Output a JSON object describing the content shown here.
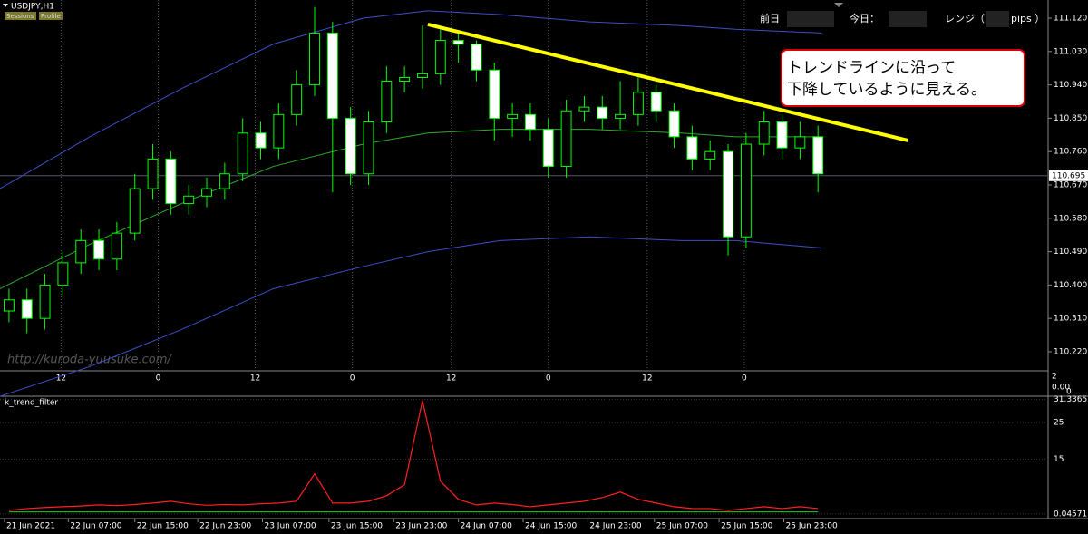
{
  "header": {
    "symbol": "USDJPY,H1",
    "buttons": [
      "Sessions",
      "Profile"
    ],
    "info": [
      "前日",
      "今日：",
      "レンジ（",
      "pips ）"
    ],
    "annotation": [
      "トレンドラインに沿って",
      "下降しているように見える。"
    ],
    "watermark": "http://kuroda-yuusuke.com/",
    "separator_labels": [
      "2",
      "0.00",
      "0"
    ]
  },
  "chart_data": [
    {
      "type": "candlestick",
      "title": "USDJPY,H1",
      "xlim": [
        -0.5,
        57.8
      ],
      "ylim": [
        110.171,
        111.169
      ],
      "yticks": [
        {
          "value": 111.12,
          "label": "111.120"
        },
        {
          "value": 111.03,
          "label": "111.030"
        },
        {
          "value": 110.94,
          "label": "110.940"
        },
        {
          "value": 110.85,
          "label": "110.850"
        },
        {
          "value": 110.76,
          "label": "110.760"
        },
        {
          "value": 110.67,
          "label": "110.670"
        },
        {
          "value": 110.58,
          "label": "110.580"
        },
        {
          "value": 110.49,
          "label": "110.490"
        },
        {
          "value": 110.4,
          "label": "110.400"
        },
        {
          "value": 110.31,
          "label": "110.310"
        },
        {
          "value": 110.22,
          "label": "110.220"
        }
      ],
      "xticks": [
        {
          "value": 2.9,
          "label": "12"
        },
        {
          "value": 8.3,
          "label": "0"
        },
        {
          "value": 13.7,
          "label": "12"
        },
        {
          "value": 19.1,
          "label": "0"
        },
        {
          "value": 24.6,
          "label": "12"
        },
        {
          "value": 30.0,
          "label": "0"
        },
        {
          "value": 35.5,
          "label": "12"
        },
        {
          "value": 40.9,
          "label": "0"
        }
      ],
      "up_color": "#000000",
      "down_color": "#ffffff",
      "wick_color": "#00ff00",
      "open": [
        110.33,
        110.36,
        110.31,
        110.4,
        110.46,
        110.52,
        110.47,
        110.54,
        110.66,
        110.74,
        110.62,
        110.64,
        110.66,
        110.7,
        110.81,
        110.77,
        110.86,
        110.94,
        111.08,
        110.85,
        110.7,
        110.84,
        110.95,
        110.96,
        110.97,
        111.06,
        111.05,
        110.98,
        110.85,
        110.86,
        110.82,
        110.72,
        110.87,
        110.88,
        110.85,
        110.86,
        110.92,
        110.87,
        110.8,
        110.74,
        110.76,
        110.53,
        110.78,
        110.84,
        110.77,
        110.8
      ],
      "high": [
        110.39,
        110.39,
        110.43,
        110.49,
        110.55,
        110.55,
        110.57,
        110.7,
        110.78,
        110.76,
        110.67,
        110.69,
        110.73,
        110.85,
        110.84,
        110.89,
        110.98,
        111.15,
        111.11,
        110.88,
        110.87,
        110.99,
        110.99,
        111.1,
        111.09,
        111.08,
        111.06,
        111.0,
        110.89,
        110.89,
        110.85,
        110.9,
        110.91,
        110.91,
        110.95,
        110.96,
        110.94,
        110.89,
        110.83,
        110.79,
        110.78,
        110.81,
        110.87,
        110.86,
        110.84,
        110.83
      ],
      "low": [
        110.3,
        110.27,
        110.28,
        110.37,
        110.43,
        110.44,
        110.44,
        110.52,
        110.63,
        110.59,
        110.59,
        110.61,
        110.63,
        110.68,
        110.74,
        110.74,
        110.83,
        110.91,
        110.65,
        110.67,
        110.67,
        110.81,
        110.92,
        110.93,
        110.94,
        111.0,
        110.95,
        110.79,
        110.8,
        110.79,
        110.69,
        110.69,
        110.84,
        110.82,
        110.82,
        110.83,
        110.84,
        110.77,
        110.71,
        110.71,
        110.48,
        110.5,
        110.75,
        110.74,
        110.74,
        110.65
      ],
      "close": [
        110.36,
        110.31,
        110.4,
        110.46,
        110.52,
        110.47,
        110.54,
        110.66,
        110.74,
        110.62,
        110.64,
        110.66,
        110.7,
        110.81,
        110.77,
        110.86,
        110.94,
        111.08,
        110.85,
        110.7,
        110.84,
        110.95,
        110.96,
        110.97,
        111.06,
        111.05,
        110.98,
        110.85,
        110.86,
        110.82,
        110.72,
        110.87,
        110.88,
        110.85,
        110.86,
        110.92,
        110.87,
        110.8,
        110.74,
        110.76,
        110.53,
        110.78,
        110.84,
        110.77,
        110.8,
        110.7
      ],
      "bands": [
        {
          "color": "#3b4fc4",
          "x": [
            -0.5,
            4.5,
            9.6,
            14.7,
            19.7,
            23.3,
            27.3,
            32.3,
            37.4,
            40.4,
            45.2
          ],
          "values": [
            110.66,
            110.8,
            110.93,
            111.05,
            111.12,
            111.14,
            111.13,
            111.11,
            111.1,
            111.09,
            111.08
          ]
        },
        {
          "color": "#2ea82e",
          "x": [
            -0.5,
            4.5,
            9.6,
            14.7,
            19.7,
            23.3,
            27.3,
            32.3,
            37.4,
            40.4,
            45.2
          ],
          "values": [
            110.39,
            110.51,
            110.62,
            110.72,
            110.78,
            110.81,
            110.82,
            110.82,
            110.81,
            110.8,
            110.8
          ]
        },
        {
          "color": "#3b4fc4",
          "x": [
            -0.5,
            4.5,
            9.6,
            14.7,
            19.7,
            23.3,
            27.3,
            32.3,
            37.4,
            40.4,
            45.2
          ],
          "values": [
            110.1,
            110.18,
            110.28,
            110.39,
            110.45,
            110.49,
            110.52,
            110.53,
            110.52,
            110.52,
            110.5
          ]
        }
      ],
      "trendline": {
        "color": "#ffff00",
        "x": [
          23.3,
          50.0
        ],
        "values": [
          111.103,
          110.79
        ]
      },
      "price_line": {
        "value": 110.695,
        "label": "110.695"
      }
    },
    {
      "type": "line",
      "title": "k_trend_filter",
      "xlim": [
        -0.5,
        57.8
      ],
      "ylim": [
        -1,
        32
      ],
      "yticks": [
        31.3365,
        25,
        15,
        0.04571
      ],
      "date_ticks": [
        {
          "value": -0.25,
          "label": "21 Jun 2021"
        },
        {
          "value": 3.3,
          "label": "22 Jun 07:00"
        },
        {
          "value": 7.0,
          "label": "22 Jun 15:00"
        },
        {
          "value": 10.5,
          "label": "22 Jun 23:00"
        },
        {
          "value": 14.1,
          "label": "23 Jun 07:00"
        },
        {
          "value": 17.8,
          "label": "23 Jun 15:00"
        },
        {
          "value": 21.4,
          "label": "23 Jun 23:00"
        },
        {
          "value": 25.0,
          "label": "24 Jun 07:00"
        },
        {
          "value": 28.6,
          "label": "24 Jun 15:00"
        },
        {
          "value": 32.2,
          "label": "24 Jun 23:00"
        },
        {
          "value": 35.9,
          "label": "25 Jun 07:00"
        },
        {
          "value": 39.5,
          "label": "25 Jun 15:00"
        },
        {
          "value": 43.1,
          "label": "25 Jun 23:00"
        }
      ],
      "series": [
        {
          "color": "#ff2020",
          "values": [
            1,
            1.5,
            1.8,
            2,
            2.2,
            2.5,
            2.3,
            2.6,
            3,
            3.5,
            2.8,
            2.4,
            2.6,
            2.5,
            2.8,
            3,
            3.5,
            11,
            3,
            3,
            3.5,
            5,
            8,
            31,
            9,
            4,
            2.5,
            3,
            2.6,
            2,
            2.5,
            3,
            3.5,
            4.5,
            6,
            4,
            3,
            2,
            1.5,
            1.5,
            1,
            1.5,
            2,
            1.5,
            2,
            1.5
          ]
        },
        {
          "color": "#20b020",
          "values": [
            0.6,
            0.6,
            0.6,
            0.6,
            0.6,
            0.6,
            0.6,
            0.6,
            0.6,
            0.6,
            0.6,
            0.6,
            0.6,
            0.6,
            0.6,
            0.6,
            0.6,
            0.6,
            0.6,
            0.6,
            0.6,
            0.6,
            0.6,
            0.6,
            0.6,
            0.6,
            0.6,
            0.6,
            0.6,
            0.6,
            0.6,
            0.6,
            0.6,
            0.6,
            0.6,
            0.6,
            0.6,
            0.6,
            0.6,
            0.6,
            0.6,
            0.6,
            0.6,
            0.6,
            0.6,
            0.6
          ]
        }
      ]
    }
  ]
}
